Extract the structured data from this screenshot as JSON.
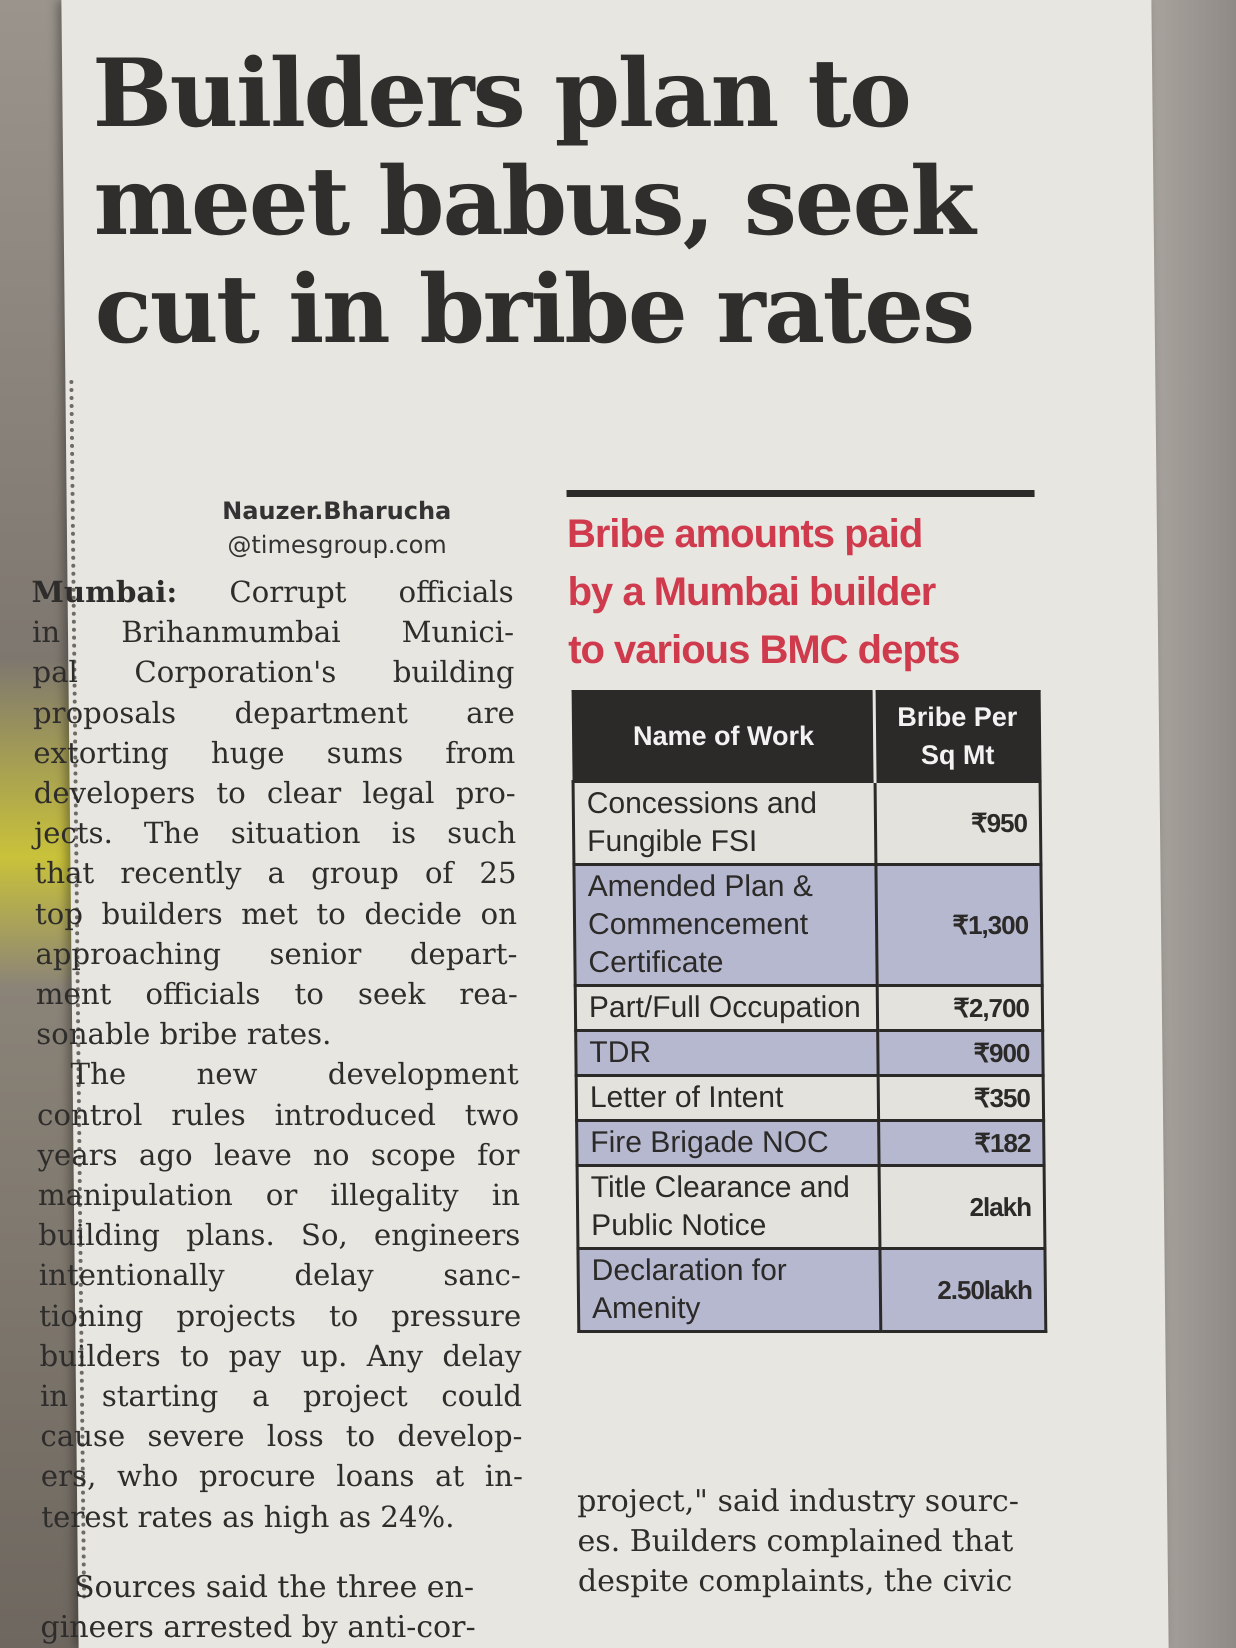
{
  "headline": {
    "lines": [
      "Builders plan to",
      "meet babus, seek",
      "cut in bribe rates"
    ]
  },
  "byline": {
    "name": "Nauzer.Bharucha",
    "email": "@timesgroup.com"
  },
  "story": {
    "dateline": "Mumbai:",
    "lines": [
      "Corrupt officials",
      "in Brihanmumbai Munici-",
      "pal Corporation's building",
      "proposals department are",
      "extorting huge sums from",
      "developers to clear legal pro-",
      "jects. The situation is such",
      "that recently a group of 25",
      "top builders met to decide on",
      "approaching senior depart-",
      "ment officials to seek rea-",
      "sonable bribe rates."
    ],
    "para2": [
      "The new development",
      "control rules introduced two",
      "years ago leave no scope for",
      "manipulation or illegality in",
      "building plans. So, engineers",
      "intentionally delay sanc-",
      "tioning projects to pressure",
      "builders to pay up. Any delay",
      "in starting a project could",
      "cause severe loss to develop-",
      "ers, who procure loans at in-",
      "terest rates as high as 24%."
    ],
    "para3": [
      "Sources said the three en-",
      "gineers arrested by anti-cor-"
    ],
    "continued": [
      "project,\" said industry sourc-",
      "es. Builders complained that",
      "despite complaints, the civic"
    ]
  },
  "factbox": {
    "title_lines": [
      "Bribe amounts paid",
      "by a Mumbai builder",
      "to various BMC depts"
    ],
    "header_work": "Name of Work",
    "header_amount": "Bribe Per Sq Mt",
    "rows": [
      {
        "work": "Concessions and Fungible FSI",
        "amount": "₹950"
      },
      {
        "work": "Amended Plan & Commencement Certificate",
        "amount": "₹1,300"
      },
      {
        "work": "Part/Full Occupation",
        "amount": "₹2,700"
      },
      {
        "work": "TDR",
        "amount": "₹900"
      },
      {
        "work": "Letter of Intent",
        "amount": "₹350"
      },
      {
        "work": "Fire Brigade NOC",
        "amount": "₹182"
      },
      {
        "work": "Title Clearance and Public Notice",
        "amount": "2lakh"
      },
      {
        "work": "Declaration for Amenity",
        "amount": "2.50lakh"
      }
    ]
  },
  "colors": {
    "headline_red": "#cf3a4c",
    "table_header": "#2b2a28",
    "row_shade": "#b6b8cf",
    "paper": "#e8e6e1"
  }
}
